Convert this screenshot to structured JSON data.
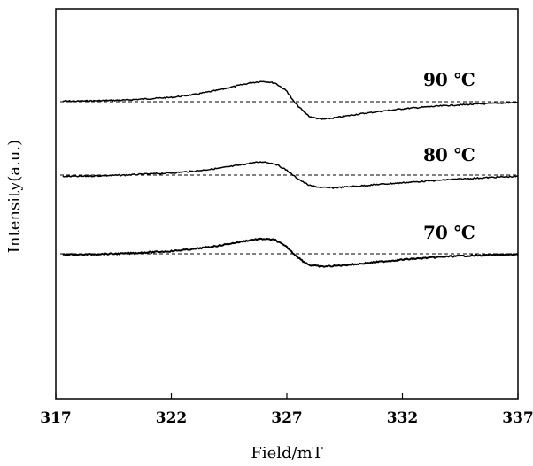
{
  "chart_data": {
    "type": "line",
    "title": "",
    "xlabel": "Field/mT",
    "ylabel": "Intensity(a.u.)",
    "xlim": [
      317,
      337
    ],
    "x_ticks": [
      317,
      322,
      327,
      332,
      337
    ],
    "grid": false,
    "y_units": "arbitrary, offset baselines",
    "series": [
      {
        "name": "90 ℃",
        "baseline": 0,
        "x": [
          318,
          320,
          322,
          323,
          324,
          325,
          325.5,
          326,
          326.5,
          327,
          327.3,
          327.7,
          328,
          328.5,
          329,
          330,
          331,
          332,
          333,
          334,
          336,
          337
        ],
        "y": [
          0.2,
          0.6,
          1.6,
          2.7,
          4.3,
          6.3,
          7.2,
          7.7,
          7.0,
          4.0,
          0.0,
          -3.5,
          -5.7,
          -6.7,
          -6.2,
          -4.8,
          -3.7,
          -2.7,
          -2.0,
          -1.4,
          -0.6,
          -0.3
        ]
      },
      {
        "name": "80 ℃",
        "baseline": 0,
        "x": [
          318,
          320,
          322,
          323,
          324,
          325,
          325.5,
          326,
          326.5,
          327,
          327.3,
          327.7,
          328,
          328.5,
          329,
          330,
          331,
          332,
          333,
          334,
          336,
          337
        ],
        "y": [
          -0.5,
          0.0,
          0.8,
          1.5,
          2.5,
          3.8,
          4.6,
          5.0,
          4.2,
          1.8,
          -0.3,
          -2.6,
          -4.0,
          -4.7,
          -4.8,
          -4.2,
          -3.5,
          -2.9,
          -2.3,
          -1.7,
          -0.8,
          -0.5
        ]
      },
      {
        "name": "70 ℃",
        "baseline": 0,
        "x": [
          318,
          320,
          322,
          323,
          324,
          325,
          325.5,
          326,
          326.5,
          327,
          327.3,
          327.7,
          328,
          328.5,
          329,
          330,
          331,
          332,
          333,
          334,
          336,
          337
        ],
        "y": [
          -0.3,
          0.1,
          1.0,
          1.8,
          3.0,
          4.5,
          5.3,
          5.6,
          5.2,
          2.5,
          0.0,
          -2.8,
          -4.3,
          -4.8,
          -4.6,
          -3.9,
          -3.0,
          -2.2,
          -1.6,
          -1.0,
          -0.4,
          -0.3
        ]
      }
    ]
  }
}
